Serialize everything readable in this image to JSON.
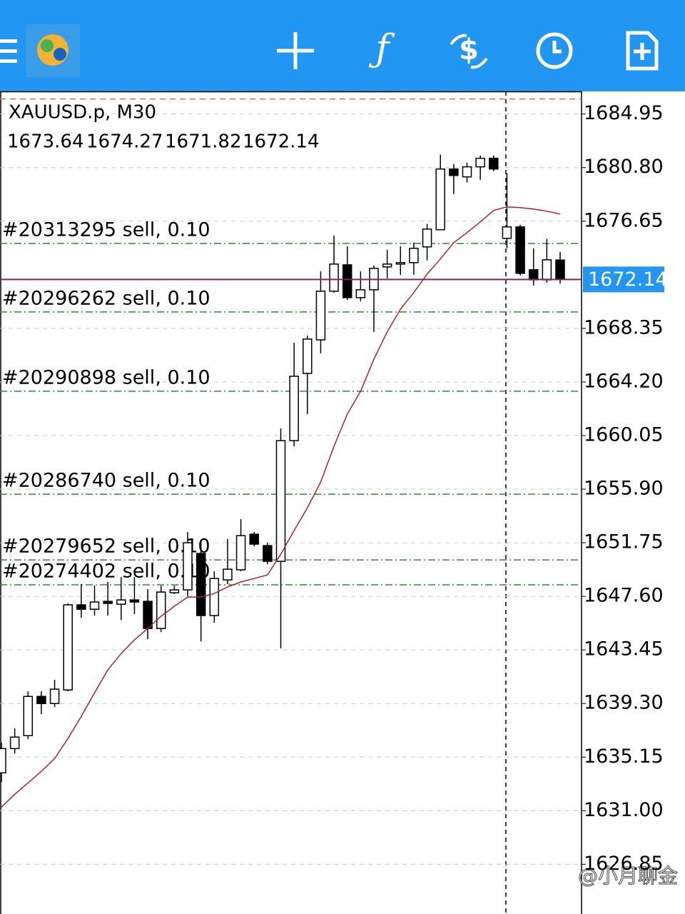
{
  "chart_data": {
    "type": "candlestick",
    "title": "XAUUSD.p, M30",
    "open": [
      1633.93,
      1635.81,
      1636.81,
      1639.85,
      1639.3,
      1640.35,
      1646.94,
      1646.6,
      1647.21,
      1646.99,
      1647.32,
      1647.21,
      1645.11,
      1647.88,
      1648.1,
      1650.92,
      1646.11,
      1648.87,
      1649.65,
      1652.41,
      1651.53,
      1650.31,
      1659.66,
      1664.86,
      1667.46,
      1671.23,
      1673.27,
      1670.73,
      1671.34,
      1673.11,
      1673.33,
      1673.44,
      1674.66,
      1675.99,
      1680.69,
      1680.08,
      1680.86,
      1681.52,
      1675.32,
      1676.21,
      1672.89,
      1672.11,
      1673.64
    ],
    "high": [
      1636.26,
      1637.36,
      1640.24,
      1640.24,
      1641.13,
      1647.05,
      1648.54,
      1648.43,
      1648.71,
      1649.09,
      1649.09,
      1648.15,
      1648.43,
      1648.43,
      1652.58,
      1651.75,
      1649.54,
      1652.03,
      1653.58,
      1652.58,
      1651.75,
      1660.6,
      1667.24,
      1667.8,
      1672.78,
      1675.54,
      1674.71,
      1672.78,
      1673.22,
      1674.44,
      1674.71,
      1674.99,
      1676.43,
      1681.8,
      1681.08,
      1681.19,
      1681.74,
      1681.74,
      1680.36,
      1676.37,
      1674.55,
      1675.27,
      1674.27
    ],
    "low": [
      1633.21,
      1635.43,
      1636.53,
      1638.47,
      1639.02,
      1640.24,
      1645.94,
      1646.11,
      1646.11,
      1645.77,
      1646.22,
      1644.28,
      1644.83,
      1647.77,
      1647.6,
      1644.11,
      1645.55,
      1648.54,
      1649.54,
      1651.47,
      1650.09,
      1643.56,
      1659.22,
      1661.71,
      1666.41,
      1671.12,
      1670.56,
      1670.45,
      1668.07,
      1672.22,
      1672.5,
      1672.5,
      1673.61,
      1675.99,
      1678.75,
      1679.64,
      1679.86,
      1680.52,
      1674.55,
      1672.45,
      1671.67,
      1671.89,
      1671.82
    ],
    "close": [
      1635.81,
      1636.7,
      1639.85,
      1639.3,
      1640.41,
      1646.94,
      1646.6,
      1647.16,
      1647.05,
      1647.32,
      1647.16,
      1645.11,
      1647.93,
      1648.1,
      1651.75,
      1646.11,
      1648.98,
      1649.7,
      1652.3,
      1651.64,
      1650.31,
      1659.66,
      1664.64,
      1667.52,
      1671.23,
      1673.33,
      1670.73,
      1671.34,
      1673.0,
      1673.33,
      1673.44,
      1674.55,
      1676.04,
      1680.69,
      1680.19,
      1680.86,
      1681.52,
      1680.69,
      1676.21,
      1672.61,
      1672.11,
      1673.66,
      1672.14
    ],
    "up_color": "#ffffff",
    "down_color": "#000000",
    "ma": {
      "color": "#b22222",
      "values": [
        1631.28,
        1632.27,
        1633.16,
        1634.04,
        1635.04,
        1636.59,
        1638.3,
        1640.13,
        1641.9,
        1643.17,
        1644.22,
        1645.11,
        1646.05,
        1646.83,
        1647.54,
        1647.54,
        1647.82,
        1648.32,
        1648.71,
        1648.98,
        1649.26,
        1650.86,
        1652.69,
        1654.46,
        1656.45,
        1659.22,
        1661.71,
        1663.48,
        1665.97,
        1668.07,
        1669.84,
        1671.12,
        1672.56,
        1673.72,
        1674.99,
        1675.76,
        1676.59,
        1677.48,
        1677.76,
        1677.7,
        1677.59,
        1677.42,
        1677.2
      ]
    },
    "ylim": [
      1623.0,
      1686.7
    ],
    "yticks": [
      1684.95,
      {
        "value": 1680.8,
        "label": "1680.80"
      },
      1676.65,
      1668.35,
      {
        "value": 1664.2,
        "label": "1664.20"
      },
      1660.05,
      {
        "value": 1655.9,
        "label": "1655.90"
      },
      1651.75,
      {
        "value": 1647.6,
        "label": "1647.60"
      },
      1643.45,
      {
        "value": 1639.3,
        "label": "1639.30"
      },
      1635.15,
      {
        "value": 1631.0,
        "label": "1631.00"
      },
      1626.85
    ],
    "grid": true,
    "bid": 1672.14,
    "bid_color": "#8b2252",
    "orders": [
      {
        "label": "#20313295 sell, 0.10",
        "price": 1674.93
      },
      {
        "label": "#20296262 sell, 0.10",
        "price": 1669.62
      },
      {
        "label": "#20290898 sell, 0.10",
        "price": 1663.48
      },
      {
        "label": "#20286740 sell, 0.10",
        "price": 1655.51
      },
      {
        "label": "#20279652 sell, 0.10",
        "price": 1650.42
      },
      {
        "label": "#20274402 sell, 0.10",
        "price": 1648.49
      }
    ],
    "order_color": "#2e8b2e",
    "stop_level": 1686.11,
    "level_color": "#e07040"
  },
  "watermark": "@小月聊金"
}
